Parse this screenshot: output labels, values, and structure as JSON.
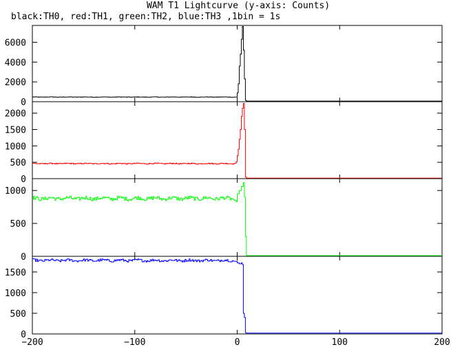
{
  "title": "WAM T1 Lightcurve (y-axis: Counts)",
  "subtitle": "black:TH0, red:TH1, green:TH2, blue:TH3 ,1bin = 1s",
  "chart_data": {
    "type": "line",
    "x_range": [
      -200,
      200
    ],
    "x_ticks": [
      -200,
      -100,
      0,
      100,
      200
    ],
    "x_tick_labels": [
      "−200",
      "−100",
      "0",
      "100",
      "200"
    ],
    "grid": false,
    "panels": [
      {
        "name": "TH0",
        "color": "#000000",
        "y_range": [
          0,
          7700
        ],
        "y_ticks": [
          0,
          2000,
          4000,
          6000
        ],
        "y_tick_labels": [
          "0",
          "2000",
          "4000",
          "6000"
        ],
        "baseline": 470,
        "noise": 20,
        "burst": [
          [
            -2,
            470
          ],
          [
            0,
            900
          ],
          [
            1,
            1800
          ],
          [
            2,
            3600
          ],
          [
            3,
            4800
          ],
          [
            4,
            6300
          ],
          [
            5,
            7600
          ],
          [
            6,
            5200
          ],
          [
            7,
            2300
          ],
          [
            8,
            140
          ],
          [
            9,
            60
          ],
          [
            200,
            60
          ]
        ]
      },
      {
        "name": "TH1",
        "color": "#ff0000",
        "y_range": [
          0,
          2350
        ],
        "y_ticks": [
          0,
          500,
          1000,
          1500,
          2000
        ],
        "y_tick_labels": [
          "0",
          "500",
          "1000",
          "1500",
          "2000"
        ],
        "baseline": 460,
        "noise": 15,
        "burst": [
          [
            -3,
            470
          ],
          [
            -1,
            520
          ],
          [
            0,
            700
          ],
          [
            1,
            900
          ],
          [
            2,
            1200
          ],
          [
            3,
            1500
          ],
          [
            4,
            1900
          ],
          [
            5,
            2150
          ],
          [
            6,
            2300
          ],
          [
            7,
            1500
          ],
          [
            8,
            50
          ],
          [
            9,
            15
          ],
          [
            200,
            15
          ]
        ]
      },
      {
        "name": "TH2",
        "color": "#00ff00",
        "y_range": [
          0,
          1180
        ],
        "y_ticks": [
          0,
          500,
          1000
        ],
        "y_tick_labels": [
          "0",
          "500",
          "1000"
        ],
        "baseline": 880,
        "noise": 28,
        "burst": [
          [
            -3,
            850
          ],
          [
            -1,
            830
          ],
          [
            0,
            950
          ],
          [
            2,
            1000
          ],
          [
            4,
            1060
          ],
          [
            6,
            1120
          ],
          [
            7,
            900
          ],
          [
            8,
            300
          ],
          [
            9,
            10
          ],
          [
            200,
            10
          ]
        ]
      },
      {
        "name": "TH3",
        "color": "#0000ff",
        "y_range": [
          0,
          1880
        ],
        "y_ticks": [
          0,
          500,
          1000,
          1500
        ],
        "y_tick_labels": [
          "0",
          "500",
          "1000",
          "1500"
        ],
        "baseline": 1780,
        "noise": 30,
        "burst": [
          [
            -3,
            1760
          ],
          [
            0,
            1720
          ],
          [
            2,
            1700
          ],
          [
            4,
            1720
          ],
          [
            5,
            1680
          ],
          [
            6,
            500
          ],
          [
            7,
            400
          ],
          [
            8,
            30
          ],
          [
            9,
            20
          ],
          [
            200,
            20
          ]
        ]
      }
    ]
  }
}
